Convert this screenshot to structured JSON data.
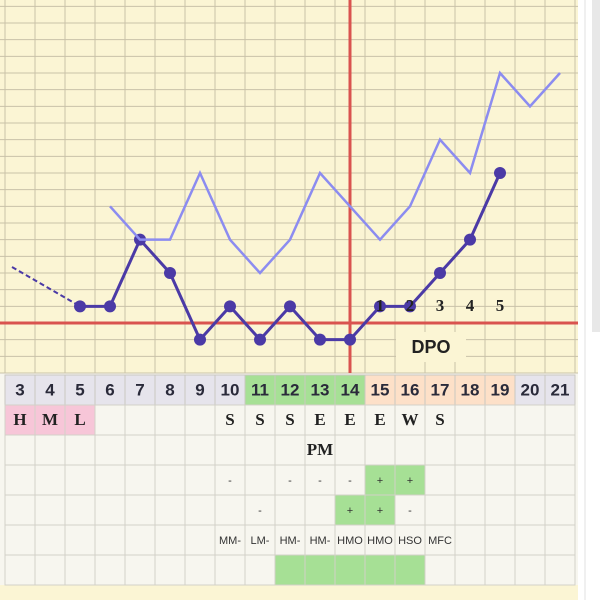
{
  "chart_data": {
    "type": "line",
    "categories": [
      "3",
      "4",
      "5",
      "6",
      "7",
      "8",
      "9",
      "10",
      "11",
      "12",
      "13",
      "14",
      "15",
      "16",
      "17",
      "18",
      "19",
      "20",
      "21"
    ],
    "series": [
      {
        "color": "#4b3aa6",
        "values": [
          6,
          null,
          4,
          4,
          8,
          6,
          2,
          4,
          2,
          4,
          2,
          2,
          4,
          4,
          6,
          8,
          12,
          null,
          null
        ]
      },
      {
        "color": "#8c8cf0",
        "values": [
          null,
          null,
          null,
          10,
          8,
          8,
          12,
          8,
          6,
          8,
          12,
          10,
          8,
          10,
          14,
          12,
          18,
          16,
          18
        ]
      }
    ],
    "ylim": [
      0,
      21
    ],
    "grid": true,
    "coverline": 3,
    "coverline_color": "#d9534f",
    "ovulation_day": 14,
    "dpo_days": [
      15,
      16,
      17,
      18,
      19
    ],
    "dpo_labels": [
      "1",
      "2",
      "3",
      "4",
      "5"
    ],
    "dpo_title": "DPO"
  },
  "table": {
    "day_fills": [
      "#e6e4ec",
      "#e6e4ec",
      "#e6e4ec",
      "#e6e4ec",
      "#e6e4ec",
      "#e6e4ec",
      "#e6e4ec",
      "#e6e4ec",
      "#a6e095",
      "#a6e095",
      "#a6e095",
      "#a6e095",
      "#fde0c8",
      "#fde0c8",
      "#fde0c8",
      "#fde0c8",
      "#fde0c8",
      "#e6e4ec",
      "#e6e4ec"
    ],
    "rows": [
      {
        "style": "cf",
        "cells": [
          "H",
          "M",
          "L",
          null,
          null,
          null,
          null,
          "S",
          "S",
          "S",
          "E",
          "E",
          "E",
          "W",
          "S",
          null,
          null,
          null,
          null
        ],
        "fills": [
          "#f7c6d8",
          "#f7c6d8",
          "#f7c6d8",
          null,
          null,
          null,
          null,
          null,
          null,
          null,
          null,
          null,
          null,
          null,
          null,
          null,
          null,
          null,
          null
        ]
      },
      {
        "style": "cf",
        "cells": [
          null,
          null,
          null,
          null,
          null,
          null,
          null,
          null,
          null,
          null,
          "PM",
          null,
          null,
          null,
          null,
          null,
          null,
          null,
          null
        ],
        "fills": [
          null,
          null,
          null,
          null,
          null,
          null,
          null,
          null,
          null,
          null,
          null,
          null,
          null,
          null,
          null,
          null,
          null,
          null,
          null
        ]
      },
      {
        "style": "sm",
        "cells": [
          null,
          null,
          null,
          null,
          null,
          null,
          null,
          "-",
          null,
          "-",
          "-",
          "-",
          "+",
          "+",
          null,
          null,
          null,
          null,
          null
        ],
        "fills": [
          null,
          null,
          null,
          null,
          null,
          null,
          null,
          null,
          null,
          null,
          null,
          null,
          "#a6e095",
          "#a6e095",
          null,
          null,
          null,
          null,
          null
        ]
      },
      {
        "style": "sm",
        "cells": [
          null,
          null,
          null,
          null,
          null,
          null,
          null,
          null,
          "-",
          null,
          null,
          "+",
          "+",
          "-",
          null,
          null,
          null,
          null,
          null
        ],
        "fills": [
          null,
          null,
          null,
          null,
          null,
          null,
          null,
          null,
          null,
          null,
          null,
          "#a6e095",
          "#a6e095",
          null,
          null,
          null,
          null,
          null,
          null
        ]
      },
      {
        "style": "sm",
        "cells": [
          null,
          null,
          null,
          null,
          null,
          null,
          null,
          "MM-",
          "LM-",
          "HM-",
          "HM-",
          "HMO",
          "HMO",
          "HSO",
          "MFC",
          null,
          null,
          null,
          null
        ],
        "fills": [
          null,
          null,
          null,
          null,
          null,
          null,
          null,
          null,
          null,
          null,
          null,
          null,
          null,
          null,
          null,
          null,
          null,
          null,
          null
        ]
      },
      {
        "style": "sm",
        "cells": [
          null,
          null,
          null,
          null,
          null,
          null,
          null,
          null,
          null,
          null,
          null,
          null,
          null,
          null,
          null,
          null,
          null,
          null,
          null
        ],
        "fills": [
          null,
          null,
          null,
          null,
          null,
          null,
          null,
          null,
          null,
          "#a6e095",
          "#a6e095",
          "#a6e095",
          "#a6e095",
          "#a6e095",
          null,
          null,
          null,
          null,
          null
        ]
      }
    ]
  }
}
